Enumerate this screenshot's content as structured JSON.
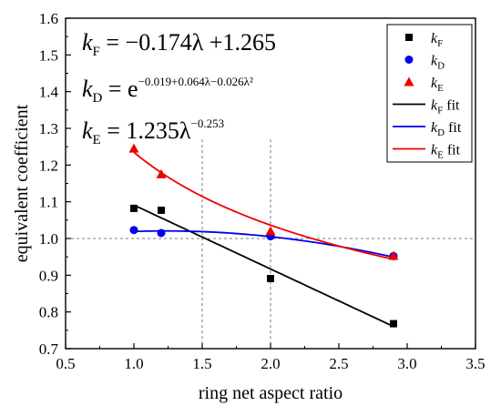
{
  "chart_data": {
    "type": "scatter",
    "xlabel": "ring net aspect ratio",
    "ylabel": "equivalent coefficient",
    "xlim": [
      0.5,
      3.5
    ],
    "ylim": [
      0.7,
      1.6
    ],
    "xticks": [
      "0.5",
      "1.0",
      "1.5",
      "2.0",
      "2.5",
      "3.0",
      "3.5"
    ],
    "yticks": [
      "0.7",
      "0.8",
      "0.9",
      "1.0",
      "1.1",
      "1.2",
      "1.3",
      "1.4",
      "1.5",
      "1.6"
    ],
    "grid": false,
    "legend_position": "top-right",
    "reference_lines": {
      "horizontal_y": 1.0,
      "vertical_x": [
        1.5,
        2.0
      ]
    },
    "equations": {
      "kF": {
        "lhs": "k",
        "sub": "F",
        "rhs": " = −0.174λ +1.265"
      },
      "kD": {
        "lhs": "k",
        "sub": "D",
        "rhs": " = e",
        "sup": "−0.019+0.064λ−0.026λ²"
      },
      "kE": {
        "lhs": "k",
        "sub": "E",
        "rhs": " = 1.235λ",
        "sup": "−0.253"
      }
    },
    "series": [
      {
        "name": "kF",
        "legend_main": "k",
        "legend_sub": "F",
        "marker": "square",
        "color": "#000000",
        "x": [
          1.0,
          1.2,
          2.0,
          2.9
        ],
        "y": [
          1.082,
          1.077,
          0.891,
          0.768
        ]
      },
      {
        "name": "kD",
        "legend_main": "k",
        "legend_sub": "D",
        "marker": "circle",
        "color": "#0000ee",
        "x": [
          1.0,
          1.2,
          2.0,
          2.9
        ],
        "y": [
          1.023,
          1.015,
          1.006,
          0.952
        ]
      },
      {
        "name": "kE",
        "legend_main": "k",
        "legend_sub": "E",
        "marker": "triangle",
        "color": "#ee0000",
        "x": [
          1.0,
          1.2,
          2.0,
          2.9
        ],
        "y": [
          1.245,
          1.175,
          1.02,
          0.953
        ]
      }
    ],
    "fits": [
      {
        "name": "kF fit",
        "legend_main": "k",
        "legend_sub": "F",
        "legend_suffix": " fit",
        "color": "#000000",
        "model": "linear",
        "params": [
          -0.174,
          1.265
        ],
        "x_range": [
          1.0,
          2.9
        ]
      },
      {
        "name": "kD fit",
        "legend_main": "k",
        "legend_sub": "D",
        "legend_suffix": " fit",
        "color": "#0000ee",
        "model": "exp_quadratic",
        "params": [
          -0.019,
          0.064,
          -0.026
        ],
        "x_range": [
          1.0,
          2.9
        ]
      },
      {
        "name": "kE fit",
        "legend_main": "k",
        "legend_sub": "E",
        "legend_suffix": " fit",
        "color": "#ee0000",
        "model": "power",
        "params": [
          1.235,
          -0.253
        ],
        "x_range": [
          1.0,
          2.9
        ]
      }
    ]
  }
}
